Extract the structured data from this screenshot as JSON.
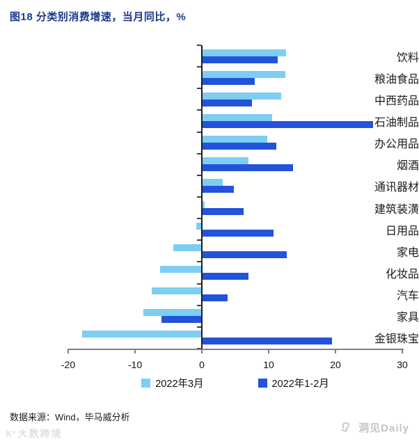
{
  "title": "图18 分类别消费增速，当月同比，%",
  "chart_data": {
    "type": "bar",
    "orientation": "horizontal",
    "title": "图18 分类别消费增速，当月同比，%",
    "categories": [
      "饮料",
      "粮油食品",
      "中西药品",
      "石油制品",
      "办公用品",
      "烟酒",
      "通讯器材",
      "建筑装潢",
      "日用品",
      "家电",
      "化妆品",
      "汽车",
      "家具",
      "金银珠宝"
    ],
    "series": [
      {
        "name": "2022年3月",
        "color": "#7CCEF2",
        "values": [
          12.6,
          12.5,
          11.9,
          10.5,
          9.8,
          7.0,
          3.1,
          0.4,
          -0.8,
          -4.3,
          -6.3,
          -7.5,
          -8.8,
          -17.9
        ]
      },
      {
        "name": "2022年1-2月",
        "color": "#2353DB",
        "values": [
          11.4,
          7.9,
          7.5,
          25.6,
          11.1,
          13.6,
          4.8,
          6.2,
          10.7,
          12.7,
          7.0,
          3.9,
          -6.0,
          19.5
        ]
      }
    ],
    "xlabel": "",
    "ylabel": "",
    "xlim": [
      -20,
      30
    ],
    "xticks": [
      "-20",
      "-10",
      "0",
      "10",
      "20",
      "30"
    ],
    "grid": false,
    "legend_position": "bottom"
  },
  "footer": {
    "source": "数据来源：Wind，毕马威分析"
  },
  "watermarks": {
    "bottom_left_mark": "K°",
    "bottom_left": "大数跨境",
    "bottom_right": "洞见Daily"
  },
  "colors": {
    "title": "#1a3a8c",
    "series_march": "#7CCEF2",
    "series_janfeb": "#2353DB",
    "axis_gray": "#808080",
    "zero_axis": "#1f1f1f"
  }
}
